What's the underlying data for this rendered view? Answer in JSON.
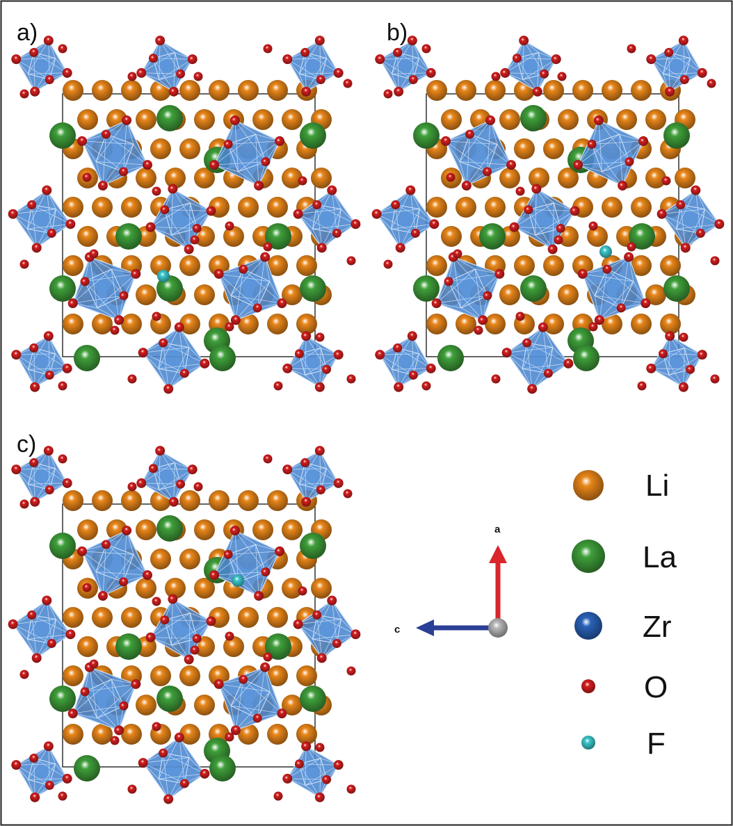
{
  "panels": [
    {
      "label": "a)",
      "f_site": "a"
    },
    {
      "label": "b)",
      "f_site": "b"
    },
    {
      "label": "c)",
      "f_site": "c"
    }
  ],
  "legend": [
    {
      "label": "Li",
      "element": "li",
      "color": "#e8861a"
    },
    {
      "label": "La",
      "element": "la",
      "color": "#3f9f3a"
    },
    {
      "label": "Zr",
      "element": "zr",
      "color": "#2a62b8"
    },
    {
      "label": "O",
      "element": "o",
      "color": "#d51f1f"
    },
    {
      "label": "F",
      "element": "f",
      "color": "#3cc8cc"
    }
  ],
  "axes": {
    "vertical_label": "a",
    "horizontal_label": "c"
  },
  "colors": {
    "polyhedron": "#4a86cf",
    "li": "#e8861a",
    "la": "#3f9f3a",
    "zr": "#2a62b8",
    "o": "#d51f1f",
    "f": "#3cc8cc",
    "axis_a": "#d9252b",
    "axis_c": "#2c3f96",
    "axis_origin": "#b8b8b8"
  }
}
